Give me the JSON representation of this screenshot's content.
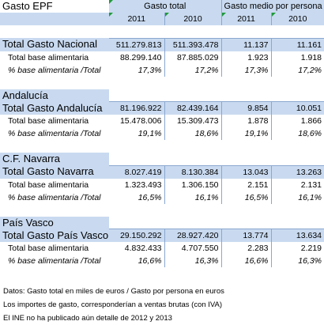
{
  "title": "Gasto EPF",
  "headers": {
    "gasto_total": "Gasto total",
    "gasto_medio": "Gasto medio por persona"
  },
  "years": [
    "2011",
    "2010",
    "2011",
    "2010"
  ],
  "sections": [
    {
      "region": "",
      "total": {
        "label": "Total Gasto Nacional",
        "v": [
          "511.279.813",
          "511.393.478",
          "11.137",
          "11.161"
        ]
      },
      "base": {
        "label": "Total base alimentaria",
        "v": [
          "88.299.140",
          "87.885.029",
          "1.923",
          "1.918"
        ]
      },
      "pct": {
        "label": "% base alimentaria /Total",
        "v": [
          "17,3%",
          "17,2%",
          "17,3%",
          "17,2%"
        ]
      }
    },
    {
      "region": "Andalucía",
      "total": {
        "label": "Total Gasto Andalucía",
        "v": [
          "81.196.922",
          "82.439.164",
          "9.854",
          "10.051"
        ]
      },
      "base": {
        "label": "Total base alimentaria",
        "v": [
          "15.478.006",
          "15.309.473",
          "1.878",
          "1.866"
        ]
      },
      "pct": {
        "label": "% base alimentaria /Total",
        "v": [
          "19,1%",
          "18,6%",
          "19,1%",
          "18,6%"
        ]
      }
    },
    {
      "region": "C.F. Navarra",
      "total": {
        "label": "Total Gasto Navarra",
        "v": [
          "8.027.419",
          "8.130.384",
          "13.043",
          "13.263"
        ]
      },
      "base": {
        "label": "Total base alimentaria",
        "v": [
          "1.323.493",
          "1.306.150",
          "2.151",
          "2.131"
        ]
      },
      "pct": {
        "label": "% base alimentaria /Total",
        "v": [
          "16,5%",
          "16,1%",
          "16,5%",
          "16,1%"
        ]
      }
    },
    {
      "region": "País Vasco",
      "total": {
        "label": "Total Gasto País Vasco",
        "v": [
          "29.150.292",
          "28.927.420",
          "13.774",
          "13.634"
        ]
      },
      "base": {
        "label": "Total base alimentaria",
        "v": [
          "4.832.433",
          "4.707.550",
          "2.283",
          "2.219"
        ]
      },
      "pct": {
        "label": "% base alimentaria /Total",
        "v": [
          "16,6%",
          "16,3%",
          "16,6%",
          "16,3%"
        ]
      }
    }
  ],
  "notes": [
    "Datos: Gasto total en miles de euros / Gasto por persona en euros",
    "Los importes de gasto, corresponderían a ventas brutas (con IVA)",
    "El INE no ha publicado aún detalle de 2012 y 2013"
  ]
}
